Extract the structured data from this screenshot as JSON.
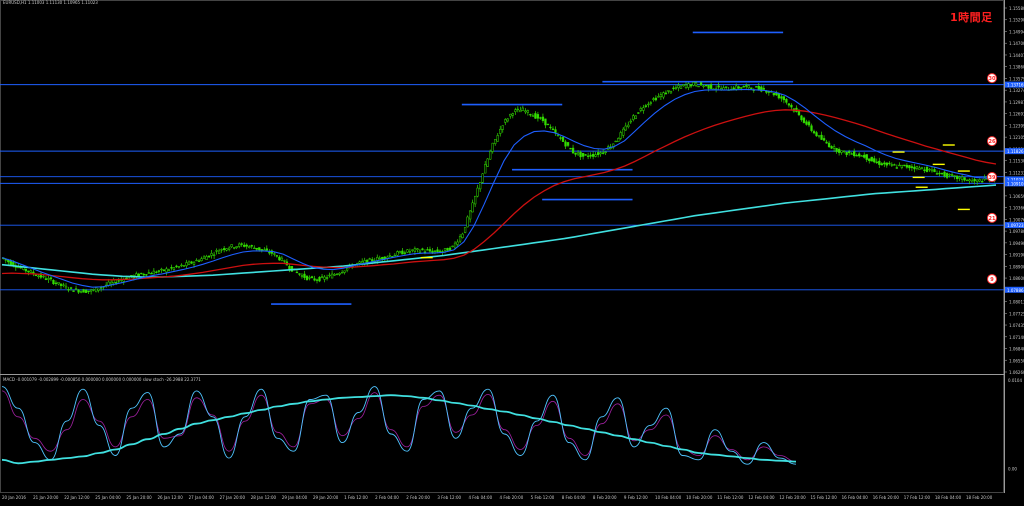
{
  "window": {
    "title": "EURUSD,H1  1.11003 1.11130 1.10965 1.11023",
    "timeframe_badge": "1時間足"
  },
  "macd_label": "MACD -0.001079 -0.002899 -0.000850 0.000000 0.000000 0.000000 slow stoch -26.2988 22.3771",
  "colors": {
    "background": "#000000",
    "candles": "#33dd00",
    "ma_fast": "#1e5fff",
    "ma_mid": "#cc1010",
    "ma_slow": "#40e0e0",
    "hline": "#1e5fff",
    "zone_mark": "#1e5fff",
    "marker": "#ffff00",
    "grid_text": "#c8c8c8",
    "badge": "#ff2020"
  },
  "chart_data": [
    {
      "type": "line",
      "title": "EURUSD,H1",
      "xlabel": "",
      "ylabel": "",
      "ylim": [
        1.0555,
        1.1595
      ],
      "yticks": [
        "1.15580",
        "1.15290",
        "1.14994",
        "1.14700",
        "1.14407",
        "1.13860",
        "1.13579",
        "1.13274",
        "1.12987",
        "1.12693",
        "1.12399",
        "1.12105",
        "1.11820",
        "1.11530",
        "1.11233",
        "1.10951",
        "1.10659",
        "1.10366",
        "1.10076",
        "1.09780",
        "1.09490",
        "1.09190",
        "1.08900",
        "1.08600",
        "1.08310",
        "1.08013",
        "1.07725",
        "1.07435",
        "1.07140",
        "1.06840",
        "1.06550",
        "1.06260"
      ],
      "xticks": [
        "20 Jan 2016",
        "21 Jan 20:00",
        "22 Jan 12:00",
        "25 Jan 04:00",
        "25 Jan 20:00",
        "26 Jan 12:00",
        "27 Jan 04:00",
        "27 Jan 20:00",
        "28 Jan 12:00",
        "29 Jan 04:00",
        "29 Jan 20:00",
        "1 Feb 12:00",
        "2 Feb 04:00",
        "2 Feb 20:00",
        "3 Feb 12:00",
        "4 Feb 04:00",
        "4 Feb 20:00",
        "5 Feb 12:00",
        "8 Feb 04:00",
        "8 Feb 20:00",
        "9 Feb 12:00",
        "10 Feb 04:00",
        "10 Feb 20:00",
        "11 Feb 12:00",
        "12 Feb 04:00",
        "12 Feb 20:00",
        "15 Feb 12:00",
        "16 Feb 04:00",
        "16 Feb 20:00",
        "17 Feb 12:00",
        "18 Feb 04:00",
        "18 Feb 20:00"
      ],
      "price_tags": [
        {
          "label": "1.13716",
          "value": 1.13716
        },
        {
          "label": "1.11826",
          "value": 1.11826
        },
        {
          "label": "1.11023",
          "value": 1.11023
        },
        {
          "label": "1.10910",
          "value": 1.1091
        },
        {
          "label": "1.09723",
          "value": 1.09723
        },
        {
          "label": "1.07886",
          "value": 1.07886
        }
      ],
      "hlines": [
        1.13716,
        1.11826,
        1.111,
        1.1091,
        1.09723,
        1.07886
      ],
      "right_markers": [
        {
          "label": "30",
          "value": 1.139
        },
        {
          "label": "26",
          "value": 1.1211
        },
        {
          "label": "39",
          "value": 1.1109
        },
        {
          "label": "21",
          "value": 1.0993
        },
        {
          "label": "9",
          "value": 1.0819
        }
      ],
      "zones": [
        {
          "x0": 0.27,
          "x1": 0.35,
          "value": 1.0748
        },
        {
          "x0": 0.46,
          "x1": 0.56,
          "value": 1.1315
        },
        {
          "x0": 0.54,
          "x1": 0.63,
          "value": 1.1045
        },
        {
          "x0": 0.6,
          "x1": 0.79,
          "value": 1.138
        },
        {
          "x0": 0.51,
          "x1": 0.63,
          "value": 1.113
        },
        {
          "x0": 0.69,
          "x1": 0.78,
          "value": 1.152
        }
      ],
      "markers": [
        {
          "x": 0.425,
          "value": 1.088
        },
        {
          "x": 0.895,
          "value": 1.118
        },
        {
          "x": 0.915,
          "value": 1.1108
        },
        {
          "x": 0.935,
          "value": 1.1145
        },
        {
          "x": 0.945,
          "value": 1.12
        },
        {
          "x": 0.918,
          "value": 1.108
        },
        {
          "x": 0.96,
          "value": 1.1126
        },
        {
          "x": 0.96,
          "value": 1.1017
        }
      ],
      "close": [
        1.088,
        1.0865,
        1.085,
        1.0838,
        1.0826,
        1.0815,
        1.0801,
        1.079,
        1.0786,
        1.0785,
        1.0796,
        1.0808,
        1.0818,
        1.0826,
        1.0833,
        1.0838,
        1.0842,
        1.0849,
        1.0856,
        1.0866,
        1.0877,
        1.089,
        1.0905,
        1.0912,
        1.0916,
        1.091,
        1.0902,
        1.0893,
        1.0873,
        1.0847,
        1.0828,
        1.0818,
        1.082,
        1.083,
        1.0843,
        1.0857,
        1.0866,
        1.0873,
        1.088,
        1.0888,
        1.0895,
        1.09,
        1.0901,
        1.0897,
        1.0898,
        1.091,
        1.095,
        1.103,
        1.112,
        1.12,
        1.126,
        1.1295,
        1.13,
        1.1285,
        1.127,
        1.124,
        1.121,
        1.118,
        1.1168,
        1.1172,
        1.118,
        1.1205,
        1.124,
        1.128,
        1.131,
        1.133,
        1.1345,
        1.136,
        1.1368,
        1.1373,
        1.1369,
        1.1363,
        1.136,
        1.1362,
        1.1365,
        1.1362,
        1.1358,
        1.1346,
        1.133,
        1.13,
        1.1268,
        1.1235,
        1.121,
        1.119,
        1.1178,
        1.1175,
        1.1168,
        1.1152,
        1.1145,
        1.114,
        1.1139,
        1.1137,
        1.1132,
        1.1124,
        1.1115,
        1.1108,
        1.1103,
        1.1096,
        1.1102,
        1.1108
      ],
      "ma_fast": [
        1.088,
        1.0871,
        1.086,
        1.0849,
        1.0838,
        1.0828,
        1.0818,
        1.0808,
        1.0801,
        1.0796,
        1.0797,
        1.0803,
        1.0809,
        1.0816,
        1.0823,
        1.0829,
        1.0834,
        1.084,
        1.0846,
        1.0853,
        1.0861,
        1.087,
        1.088,
        1.0889,
        1.0896,
        1.0899,
        1.0899,
        1.0897,
        1.089,
        1.0876,
        1.0863,
        1.0852,
        1.0847,
        1.0846,
        1.085,
        1.0857,
        1.0863,
        1.0869,
        1.0875,
        1.0881,
        1.0886,
        1.0891,
        1.0893,
        1.0893,
        1.0895,
        1.0902,
        1.0925,
        1.097,
        1.103,
        1.1095,
        1.1155,
        1.12,
        1.1225,
        1.1238,
        1.124,
        1.1235,
        1.1224,
        1.121,
        1.1198,
        1.119,
        1.1188,
        1.1196,
        1.1212,
        1.1238,
        1.1265,
        1.129,
        1.1312,
        1.133,
        1.1343,
        1.1352,
        1.1356,
        1.1357,
        1.1356,
        1.1357,
        1.1358,
        1.1357,
        1.1355,
        1.135,
        1.1341,
        1.1325,
        1.1305,
        1.1282,
        1.126,
        1.124,
        1.1224,
        1.121,
        1.1198,
        1.1184,
        1.1172,
        1.1162,
        1.1155,
        1.1149,
        1.1143,
        1.1136,
        1.1128,
        1.1121,
        1.1115,
        1.1108,
        1.1106,
        1.1106
      ],
      "ma_mid": [
        1.0835,
        1.0836,
        1.0835,
        1.0834,
        1.0832,
        1.0829,
        1.0826,
        1.0823,
        1.082,
        1.0818,
        1.0817,
        1.0817,
        1.0818,
        1.0819,
        1.0821,
        1.0823,
        1.0825,
        1.0827,
        1.083,
        1.0834,
        1.0838,
        1.0843,
        1.0848,
        1.0853,
        1.0858,
        1.0861,
        1.0863,
        1.0864,
        1.0864,
        1.0861,
        1.0858,
        1.0855,
        1.0853,
        1.0852,
        1.0852,
        1.0853,
        1.0855,
        1.0857,
        1.086,
        1.0862,
        1.0865,
        1.0868,
        1.087,
        1.0872,
        1.0874,
        1.0878,
        1.0887,
        1.0903,
        1.0925,
        1.095,
        1.0977,
        1.1005,
        1.103,
        1.1052,
        1.107,
        1.1085,
        1.1096,
        1.1104,
        1.111,
        1.1116,
        1.1122,
        1.113,
        1.114,
        1.1153,
        1.1167,
        1.1182,
        1.1196,
        1.121,
        1.1223,
        1.1235,
        1.1246,
        1.1256,
        1.1265,
        1.1273,
        1.1281,
        1.1288,
        1.1294,
        1.1298,
        1.13,
        1.1299,
        1.1296,
        1.1291,
        1.1285,
        1.1278,
        1.127,
        1.1262,
        1.1253,
        1.1243,
        1.1233,
        1.1224,
        1.1215,
        1.1206,
        1.1197,
        1.1189,
        1.1181,
        1.1173,
        1.1165,
        1.1157,
        1.1151,
        1.1146
      ],
      "ma_slow": [
        1.086,
        1.0857,
        1.0854,
        1.0851,
        1.0848,
        1.0845,
        1.0842,
        1.0839,
        1.0836,
        1.0833,
        1.0831,
        1.0829,
        1.0827,
        1.0826,
        1.0825,
        1.0825,
        1.0825,
        1.0826,
        1.0827,
        1.0828,
        1.0829,
        1.083,
        1.0832,
        1.0834,
        1.0836,
        1.0838,
        1.084,
        1.0842,
        1.0844,
        1.0846,
        1.0848,
        1.085,
        1.0852,
        1.0854,
        1.0856,
        1.0859,
        1.0862,
        1.0865,
        1.0868,
        1.0871,
        1.0874,
        1.0877,
        1.088,
        1.0883,
        1.0886,
        1.089,
        1.0894,
        1.0898,
        1.0902,
        1.0906,
        1.091,
        1.0914,
        1.0918,
        1.0922,
        1.0926,
        1.093,
        1.0934,
        1.0939,
        1.0944,
        1.0949,
        1.0954,
        1.0959,
        1.0964,
        1.0969,
        1.0974,
        1.0979,
        1.0984,
        1.0989,
        1.0994,
        1.0999,
        1.1003,
        1.1007,
        1.1011,
        1.1015,
        1.1019,
        1.1023,
        1.1027,
        1.1031,
        1.1035,
        1.1038,
        1.1041,
        1.1044,
        1.1047,
        1.105,
        1.1053,
        1.1056,
        1.1059,
        1.1062,
        1.1064,
        1.1066,
        1.1068,
        1.107,
        1.1072,
        1.1074,
        1.1076,
        1.1078,
        1.108,
        1.1082,
        1.1084,
        1.1086
      ],
      "grid": false,
      "legend": "none"
    },
    {
      "type": "line",
      "title": "MACD",
      "ylim": [
        -0.25,
        1.05
      ],
      "yticks": [
        "0.0104",
        "0.00"
      ],
      "series": [
        {
          "name": "main",
          "values": [
            0.1,
            0.06,
            0.08,
            0.1,
            0.12,
            0.14,
            0.18,
            0.22,
            0.28,
            0.34,
            0.4,
            0.46,
            0.52,
            0.56,
            0.6,
            0.64,
            0.68,
            0.72,
            0.75,
            0.78,
            0.8,
            0.82,
            0.83,
            0.84,
            0.85,
            0.84,
            0.82,
            0.79,
            0.76,
            0.73,
            0.69,
            0.66,
            0.62,
            0.58,
            0.54,
            0.5,
            0.46,
            0.42,
            0.38,
            0.34,
            0.3,
            0.26,
            0.22,
            0.18,
            0.16,
            0.14,
            0.12,
            0.1,
            0.09,
            0.08
          ]
        },
        {
          "name": "signal",
          "values": [
            0.95,
            0.7,
            0.3,
            0.1,
            0.55,
            0.92,
            0.5,
            0.15,
            0.7,
            0.88,
            0.25,
            0.4,
            0.9,
            0.6,
            0.12,
            0.6,
            0.92,
            0.35,
            0.2,
            0.8,
            0.85,
            0.3,
            0.65,
            0.95,
            0.4,
            0.2,
            0.8,
            0.9,
            0.35,
            0.7,
            0.92,
            0.4,
            0.15,
            0.55,
            0.85,
            0.3,
            0.1,
            0.6,
            0.82,
            0.25,
            0.5,
            0.7,
            0.15,
            0.1,
            0.45,
            0.2,
            0.05,
            0.3,
            0.12,
            0.05
          ]
        },
        {
          "name": "stoch",
          "values": [
            0.9,
            0.6,
            0.35,
            0.2,
            0.45,
            0.8,
            0.55,
            0.25,
            0.6,
            0.8,
            0.35,
            0.38,
            0.82,
            0.62,
            0.2,
            0.55,
            0.85,
            0.42,
            0.25,
            0.75,
            0.8,
            0.38,
            0.58,
            0.88,
            0.45,
            0.25,
            0.72,
            0.85,
            0.42,
            0.62,
            0.86,
            0.45,
            0.22,
            0.5,
            0.78,
            0.35,
            0.15,
            0.52,
            0.75,
            0.32,
            0.45,
            0.62,
            0.22,
            0.15,
            0.38,
            0.22,
            0.1,
            0.25,
            0.15,
            0.08
          ]
        }
      ],
      "grid": false,
      "legend": "none"
    }
  ]
}
